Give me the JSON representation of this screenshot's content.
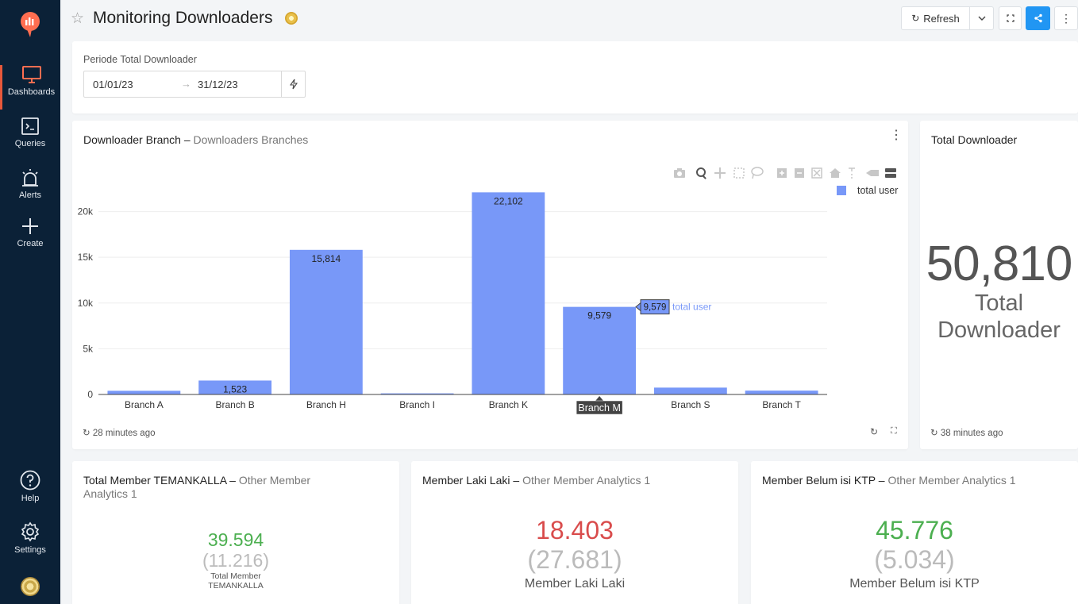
{
  "header": {
    "title": "Monitoring Downloaders",
    "refresh_label": "Refresh"
  },
  "sidebar": {
    "items": [
      {
        "label": "Dashboards",
        "icon": "monitor-icon"
      },
      {
        "label": "Queries",
        "icon": "terminal-icon"
      },
      {
        "label": "Alerts",
        "icon": "alarm-icon"
      },
      {
        "label": "Create",
        "icon": "plus-icon"
      },
      {
        "label": "Help",
        "icon": "help-icon"
      },
      {
        "label": "Settings",
        "icon": "gear-icon"
      }
    ]
  },
  "filter": {
    "label": "Periode Total Downloader",
    "start": "01/01/23",
    "end": "31/12/23"
  },
  "chart_panel": {
    "title": "Downloader Branch",
    "subtitle": "Downloaders Branches",
    "updated": "28 minutes ago"
  },
  "chart_data": {
    "type": "bar",
    "categories": [
      "Branch A",
      "Branch B",
      "Branch H",
      "Branch I",
      "Branch K",
      "Branch M",
      "Branch S",
      "Branch T"
    ],
    "series": [
      {
        "name": "total user",
        "values": [
          400,
          1523,
          15814,
          120,
          22102,
          9579,
          750,
          420
        ]
      }
    ],
    "value_labels": [
      "",
      "1,523",
      "15,814",
      "",
      "22,102",
      "9,579",
      "",
      ""
    ],
    "y_ticks": [
      0,
      5000,
      10000,
      15000,
      20000
    ],
    "y_tick_labels": [
      "0",
      "5k",
      "10k",
      "15k",
      "20k"
    ],
    "ylim": [
      0,
      23000
    ],
    "hover": {
      "category": "Branch M",
      "value": "9,579",
      "series": "total user"
    },
    "legend_position": "top-right",
    "color": "#7898f8"
  },
  "total_panel": {
    "title": "Total Downloader",
    "value": "50,810",
    "label_line1": "Total",
    "label_line2": "Downloader",
    "updated": "38 minutes ago"
  },
  "counters": [
    {
      "title": "Total Member TEMANKALLA",
      "subtitle": "Other Member",
      "subtitle2": "Analytics 1",
      "value": "39.594",
      "target": "(11.216)",
      "label": "Total Member",
      "label2": "TEMANKALLA",
      "color": "#4caf50"
    },
    {
      "title": "Member Laki Laki",
      "subtitle": "Other Member Analytics 1",
      "value": "18.403",
      "target": "(27.681)",
      "label": "Member Laki Laki",
      "color": "#d94c4c"
    },
    {
      "title": "Member Belum isi KTP",
      "subtitle": "Other Member Analytics 1",
      "value": "45.776",
      "target": "(5.034)",
      "label": "Member Belum isi KTP",
      "color": "#4caf50"
    }
  ]
}
